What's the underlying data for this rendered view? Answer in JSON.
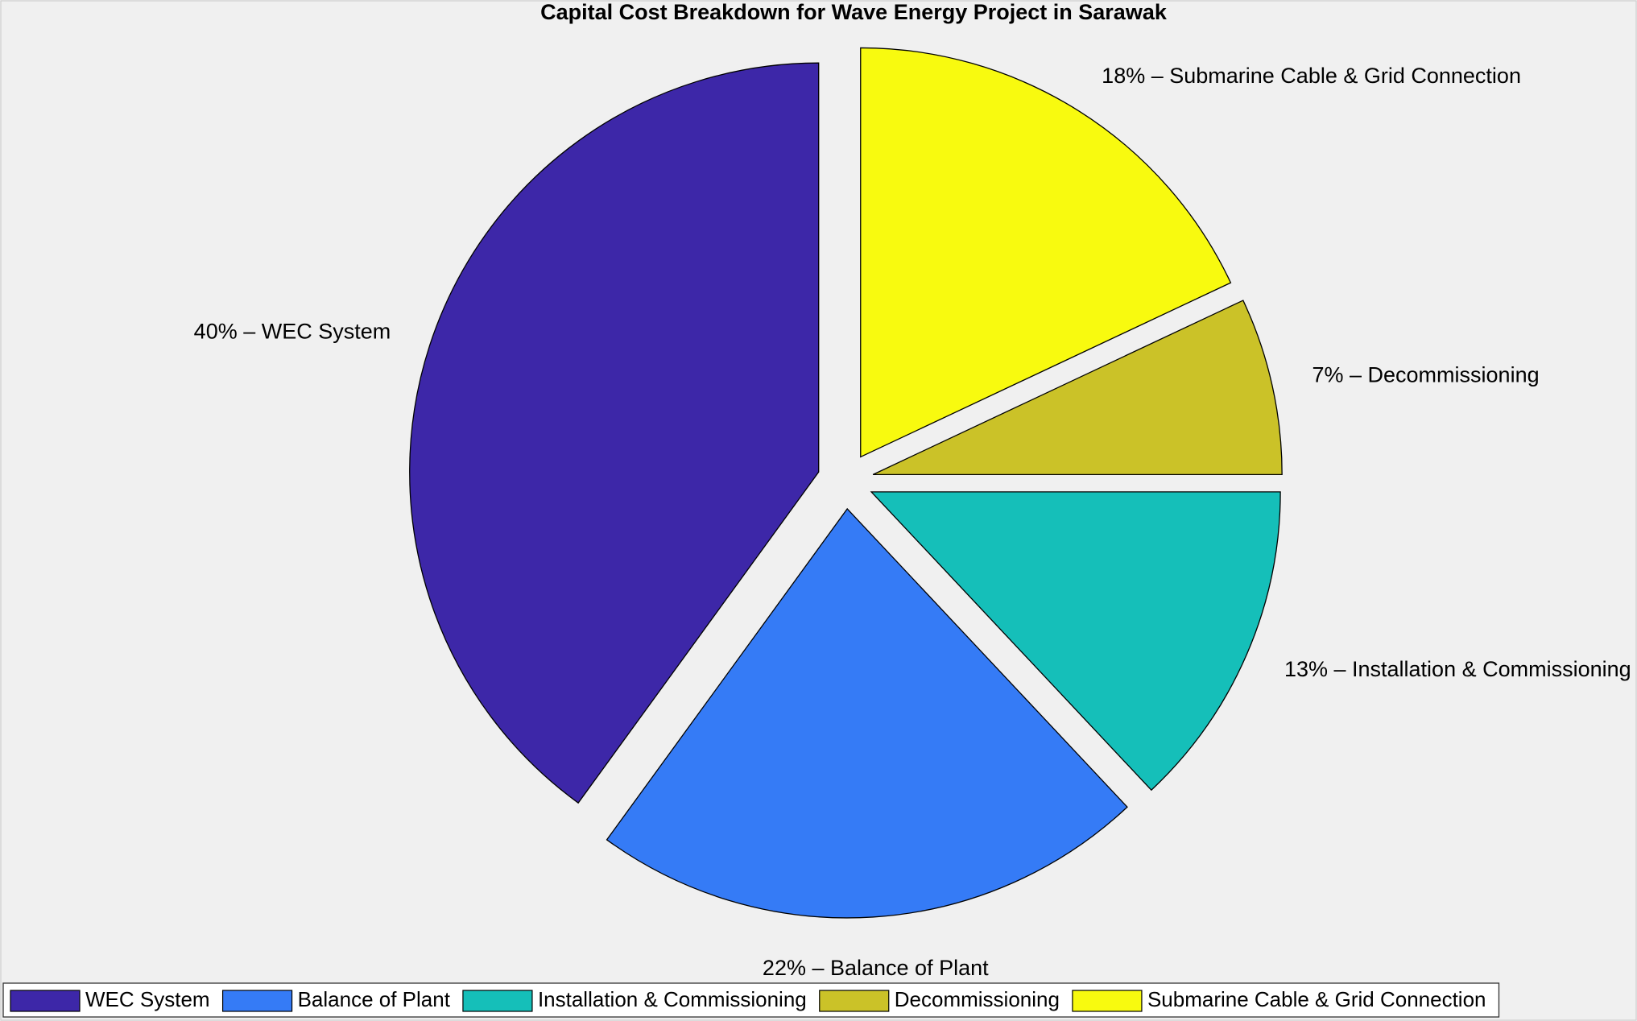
{
  "chart_data": {
    "type": "pie",
    "title": "Capital Cost Breakdown for Wave Energy Project in Sarawak",
    "categories": [
      "WEC System",
      "Balance of Plant",
      "Installation & Commissioning",
      "Decommissioning",
      "Submarine Cable & Grid Connection"
    ],
    "values": [
      40,
      22,
      13,
      7,
      18
    ],
    "value_labels": [
      "40% – WEC System",
      "22% – Balance of Plant",
      "13% – Installation & Commissioning",
      "7% – Decommissioning",
      "18% – Submarine Cable & Grid Connection"
    ],
    "colors": [
      "#3d27a8",
      "#357bf6",
      "#15bfb9",
      "#cbc228",
      "#f8fa0f"
    ],
    "explode": true,
    "legend": "bottom"
  }
}
